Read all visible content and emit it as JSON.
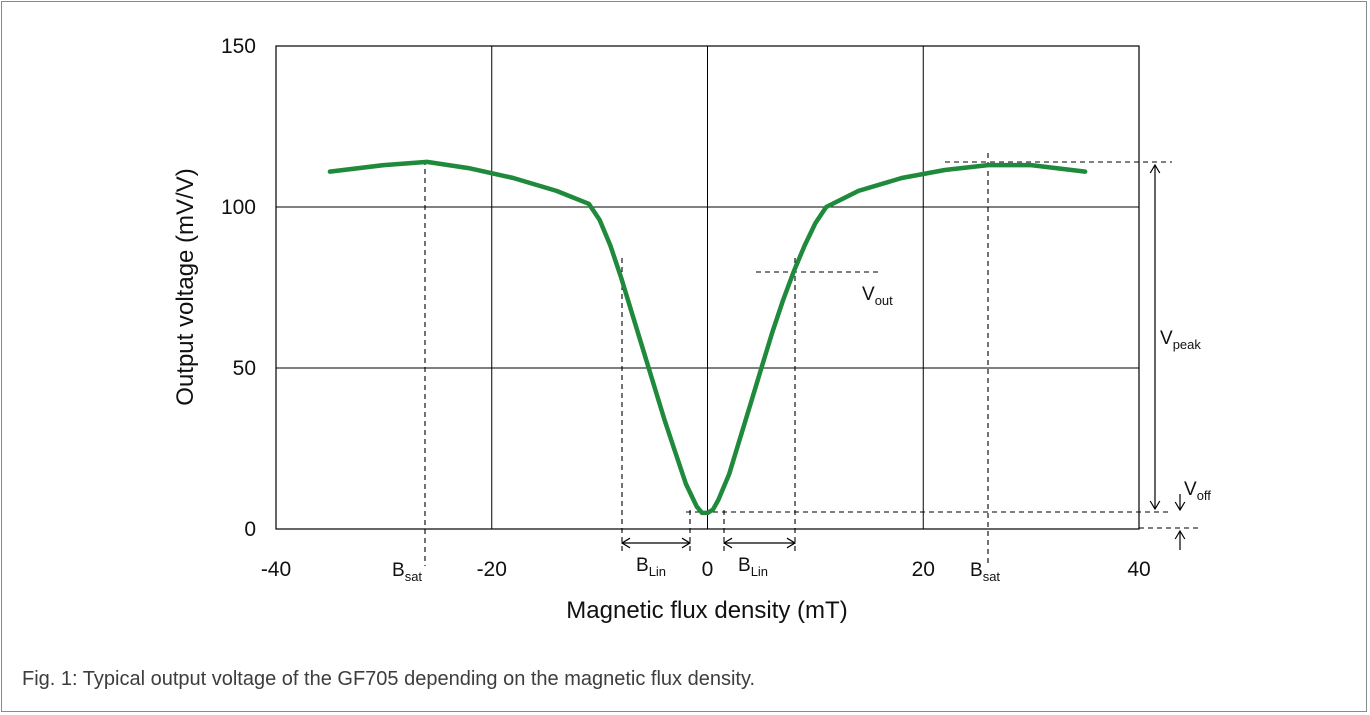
{
  "caption": "Fig. 1: Typical output voltage of the GF705 depending on the magnetic flux density.",
  "chart_data": {
    "type": "line",
    "title": "",
    "xlabel": "Magnetic flux density (mT)",
    "ylabel": "Output voltage (mV/V)",
    "xlim": [
      -40,
      40
    ],
    "ylim": [
      0,
      150
    ],
    "xticks": [
      "-40",
      "-20",
      "0",
      "20",
      "40"
    ],
    "yticks": [
      "0",
      "50",
      "100",
      "150"
    ],
    "xtick_values": [
      -40,
      -20,
      0,
      20,
      40
    ],
    "ytick_values": [
      0,
      50,
      100,
      150
    ],
    "grid": true,
    "line_color": "#1f8a3c",
    "series": [
      {
        "x": [
          -35,
          -30,
          -26,
          -22,
          -18,
          -14,
          -11,
          -10,
          -9,
          -8,
          -7,
          -6,
          -5,
          -4,
          -3,
          -2,
          -1,
          -0.5,
          0,
          0.5,
          1,
          2,
          3,
          4,
          5,
          6,
          7,
          8,
          9,
          10,
          11,
          14,
          18,
          22,
          26,
          30,
          35
        ],
        "y": [
          111,
          113,
          114,
          112,
          109,
          105,
          101,
          96,
          88,
          78,
          67,
          56,
          45,
          34,
          24,
          14,
          7,
          5,
          5,
          6,
          9,
          17,
          28,
          39,
          50,
          61,
          71,
          80,
          88,
          95,
          100,
          105,
          109,
          111.5,
          113,
          113,
          111
        ]
      }
    ],
    "annotations": {
      "bsat_label": "B",
      "bsat_sub": "sat",
      "blin_label": "B",
      "blin_sub": "Lin",
      "vout_label": "V",
      "vout_sub": "out",
      "vpeak_label": "V",
      "vpeak_sub": "peak",
      "voff_label": "V",
      "voff_sub": "off"
    }
  }
}
